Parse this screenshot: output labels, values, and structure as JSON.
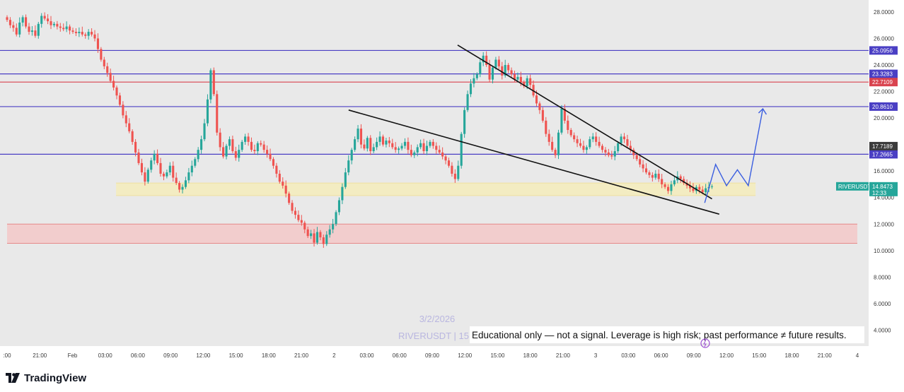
{
  "chart_data": {
    "type": "candlestick",
    "symbol_tag": "RIVERUSDT",
    "last_price": "14.8473",
    "countdown": "12:33",
    "watermark_date": "3/2/2026",
    "watermark_symbol": "RIVERUSDT | 15",
    "disclaimer": "Educational only — not a signal. Leverage is high risk; past performance ≠ future results.",
    "ylim": [
      2.8,
      28.9
    ],
    "y_ticks": [
      "4.0000",
      "6.0000",
      "8.0000",
      "10.0000",
      "12.0000",
      "14.0000",
      "16.0000",
      "18.0000",
      "20.0000",
      "22.0000",
      "24.0000",
      "26.0000",
      "28.0000"
    ],
    "x_ticks": [
      {
        "label": ":00",
        "t": 0
      },
      {
        "label": "21:00",
        "t": 9
      },
      {
        "label": "Feb",
        "t": 18
      },
      {
        "label": "03:00",
        "t": 27
      },
      {
        "label": "06:00",
        "t": 36
      },
      {
        "label": "09:00",
        "t": 45
      },
      {
        "label": "12:00",
        "t": 54
      },
      {
        "label": "15:00",
        "t": 63
      },
      {
        "label": "18:00",
        "t": 72
      },
      {
        "label": "21:00",
        "t": 81
      },
      {
        "label": "2",
        "t": 90
      },
      {
        "label": "03:00",
        "t": 99
      },
      {
        "label": "06:00",
        "t": 108
      },
      {
        "label": "09:00",
        "t": 117
      },
      {
        "label": "12:00",
        "t": 126
      },
      {
        "label": "15:00",
        "t": 135
      },
      {
        "label": "18:00",
        "t": 144
      },
      {
        "label": "21:00",
        "t": 153
      },
      {
        "label": "3",
        "t": 162
      },
      {
        "label": "03:00",
        "t": 171
      },
      {
        "label": "06:00",
        "t": 180
      },
      {
        "label": "09:00",
        "t": 189
      },
      {
        "label": "12:00",
        "t": 198
      },
      {
        "label": "15:00",
        "t": 207
      },
      {
        "label": "18:00",
        "t": 216
      },
      {
        "label": "21:00",
        "t": 225
      },
      {
        "label": "4",
        "t": 234
      }
    ],
    "x_range": [
      0,
      234
    ],
    "horizontal_levels": [
      {
        "label": "25.0956",
        "value": 25.0956,
        "color": "#4a3fc4"
      },
      {
        "label": "23.3283",
        "value": 23.3283,
        "color": "#4a3fc4"
      },
      {
        "label": "22.7109",
        "value": 22.7109,
        "color": "#d9434f"
      },
      {
        "label": "20.8610",
        "value": 20.861,
        "color": "#4a3fc4"
      },
      {
        "label": "17.2665",
        "value": 17.2665,
        "color": "#4a3fc4"
      }
    ],
    "dark_tag": {
      "label": "17.7189",
      "value": 17.7189,
      "color": "#3b3b3b"
    },
    "zones": [
      {
        "name": "support-zone",
        "from": 14.15,
        "to": 15.1,
        "t_from": 30,
        "t_to": 206,
        "color": "#f5ecb8"
      },
      {
        "name": "demand-zone",
        "from": 10.55,
        "to": 12.0,
        "t_from": 0,
        "t_to": 234,
        "color": "#f4c6c6"
      }
    ],
    "trendlines": [
      {
        "name": "upper-trendline",
        "t1": 124,
        "v1": 25.5,
        "t2": 194,
        "v2": 13.9
      },
      {
        "name": "lower-trendline",
        "t1": 94,
        "v1": 20.6,
        "t2": 196,
        "v2": 12.75
      }
    ],
    "projection_path": [
      {
        "t": 192,
        "v": 13.6
      },
      {
        "t": 195,
        "v": 16.5
      },
      {
        "t": 198,
        "v": 14.9
      },
      {
        "t": 201,
        "v": 16.1
      },
      {
        "t": 204,
        "v": 14.9
      },
      {
        "t": 208,
        "v": 20.7
      }
    ],
    "colors": {
      "up": "#26a69a",
      "down": "#ef5350",
      "background": "#e9e9e9",
      "ma": "#f0d9de"
    },
    "candle_closes": [
      27.4,
      27.0,
      26.8,
      26.3,
      27.2,
      27.6,
      26.9,
      26.5,
      26.6,
      26.2,
      27.1,
      27.7,
      27.5,
      27.3,
      27.0,
      27.1,
      26.9,
      26.8,
      26.7,
      26.9,
      26.6,
      26.5,
      26.4,
      26.5,
      26.3,
      26.2,
      26.5,
      26.3,
      26.0,
      25.2,
      24.4,
      23.9,
      23.4,
      22.8,
      22.3,
      21.7,
      21.0,
      20.2,
      19.6,
      19.0,
      18.2,
      17.4,
      16.6,
      15.9,
      15.2,
      16.1,
      16.8,
      17.3,
      16.6,
      15.8,
      15.6,
      15.9,
      16.4,
      15.5,
      15.1,
      14.6,
      14.8,
      15.3,
      15.9,
      16.4,
      16.9,
      17.6,
      18.4,
      19.6,
      21.4,
      23.6,
      21.8,
      18.9,
      17.8,
      17.1,
      17.9,
      18.4,
      17.5,
      17.0,
      17.6,
      18.2,
      18.6,
      18.2,
      17.6,
      17.5,
      18.1,
      18.0,
      17.6,
      17.3,
      16.9,
      16.4,
      15.8,
      15.2,
      14.9,
      14.3,
      13.6,
      13.0,
      12.7,
      12.3,
      12.1,
      11.6,
      11.1,
      11.3,
      10.6,
      11.4,
      11.0,
      10.5,
      11.2,
      11.6,
      12.0,
      12.9,
      13.8,
      14.8,
      15.9,
      16.8,
      17.6,
      18.4,
      19.2,
      18.0,
      17.7,
      18.5,
      17.5,
      17.8,
      18.2,
      18.6,
      18.0,
      18.3,
      18.1,
      17.8,
      17.6,
      17.7,
      17.9,
      18.2,
      17.6,
      17.2,
      17.4,
      17.8,
      18.1,
      17.5,
      17.9,
      18.2,
      17.9,
      17.6,
      17.4,
      17.1,
      16.8,
      16.4,
      15.8,
      15.4,
      16.4,
      18.8,
      20.6,
      21.8,
      22.6,
      23.0,
      23.3,
      24.2,
      24.7,
      24.0,
      22.9,
      23.8,
      24.4,
      23.9,
      23.2,
      24.0,
      23.6,
      23.3,
      22.9,
      23.1,
      22.7,
      22.4,
      23.0,
      22.5,
      21.7,
      21.1,
      20.6,
      19.8,
      18.8,
      18.2,
      17.6,
      17.2,
      18.9,
      20.7,
      19.8,
      19.1,
      18.7,
      18.4,
      18.1,
      17.9,
      17.6,
      17.8,
      18.4,
      18.6,
      18.2,
      17.9,
      17.6,
      17.4,
      17.2,
      17.1,
      17.5,
      18.1,
      18.6,
      18.4,
      17.9,
      17.6,
      17.2,
      16.9,
      16.5,
      16.2,
      15.9,
      15.7,
      15.5,
      15.8,
      15.4,
      15.0,
      14.8,
      14.5,
      15.0,
      15.3,
      15.6,
      15.4,
      15.1,
      14.9,
      14.7,
      14.5,
      14.8,
      14.6,
      14.4,
      14.7,
      14.8,
      14.85
    ]
  }
}
